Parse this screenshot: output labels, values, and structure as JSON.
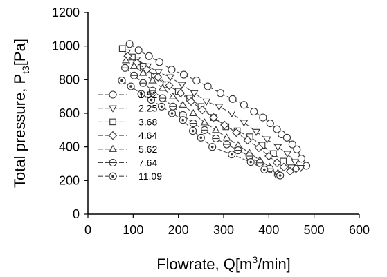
{
  "chart_data": {
    "type": "line",
    "xlabel": {
      "base": "Flowrate, Q[m",
      "sup": "3",
      "tail": "/min]"
    },
    "ylabel": {
      "base": "Total pressure, P",
      "sub": "t3",
      "tail": "[Pa]"
    },
    "xlim": [
      0,
      600
    ],
    "ylim": [
      0,
      1200
    ],
    "xticks": [
      0,
      100,
      200,
      300,
      400,
      500,
      600
    ],
    "yticks": [
      0,
      200,
      400,
      600,
      800,
      1000,
      1200
    ],
    "grid": false,
    "legend_position": "bottom-left",
    "series": [
      {
        "name": "1.52",
        "marker": "circle",
        "x": [
          92,
          112,
          135,
          158,
          185,
          212,
          240,
          265,
          293,
          320,
          345,
          367,
          387,
          403,
          418,
          428,
          440,
          452,
          462,
          472,
          483
        ],
        "y": [
          1012,
          975,
          940,
          905,
          860,
          830,
          795,
          760,
          720,
          685,
          650,
          610,
          575,
          540,
          505,
          475,
          455,
          415,
          385,
          330,
          288
        ]
      },
      {
        "name": "2.25",
        "marker": "triangle-down",
        "x": [
          86,
          108,
          132,
          156,
          182,
          208,
          235,
          262,
          290,
          318,
          345,
          372,
          396,
          420,
          441,
          458,
          471
        ],
        "y": [
          962,
          920,
          880,
          845,
          815,
          770,
          720,
          670,
          640,
          600,
          545,
          490,
          445,
          400,
          360,
          310,
          275
        ]
      },
      {
        "name": "3.68",
        "marker": "square",
        "x": [
          76,
          98,
          122,
          147,
          173,
          200,
          225,
          250,
          278,
          305,
          330,
          358,
          385,
          410,
          432,
          450
        ],
        "y": [
          985,
          935,
          880,
          820,
          770,
          730,
          690,
          640,
          575,
          520,
          495,
          460,
          410,
          360,
          315,
          275
        ]
      },
      {
        "name": "4.64",
        "marker": "diamond",
        "x": [
          88,
          108,
          130,
          155,
          180,
          205,
          228,
          253,
          278,
          302,
          328,
          353,
          378,
          400,
          418,
          433,
          447,
          460
        ],
        "y": [
          940,
          900,
          860,
          815,
          765,
          720,
          670,
          620,
          575,
          530,
          485,
          440,
          395,
          345,
          305,
          280,
          255,
          270
        ]
      },
      {
        "name": "5.62",
        "marker": "triangle-up",
        "x": [
          84,
          102,
          122,
          143,
          165,
          188,
          210,
          233,
          258,
          283,
          307,
          332,
          357,
          380,
          402,
          420
        ],
        "y": [
          915,
          880,
          840,
          795,
          750,
          700,
          650,
          600,
          545,
          500,
          455,
          410,
          365,
          320,
          280,
          245
        ]
      },
      {
        "name": "7.64",
        "marker": "circle-hline",
        "x": [
          82,
          102,
          122,
          143,
          165,
          188,
          210,
          233,
          258,
          283,
          307,
          332,
          357,
          380,
          402,
          420
        ],
        "y": [
          870,
          825,
          780,
          735,
          690,
          640,
          590,
          540,
          500,
          450,
          415,
          380,
          345,
          305,
          270,
          235
        ]
      },
      {
        "name": "11.09",
        "marker": "circle-dot",
        "x": [
          75,
          95,
          118,
          140,
          163,
          186,
          210,
          232,
          250,
          275,
          318,
          360,
          390,
          425
        ],
        "y": [
          795,
          760,
          715,
          680,
          640,
          600,
          560,
          495,
          455,
          400,
          355,
          310,
          265,
          230
        ]
      }
    ]
  }
}
